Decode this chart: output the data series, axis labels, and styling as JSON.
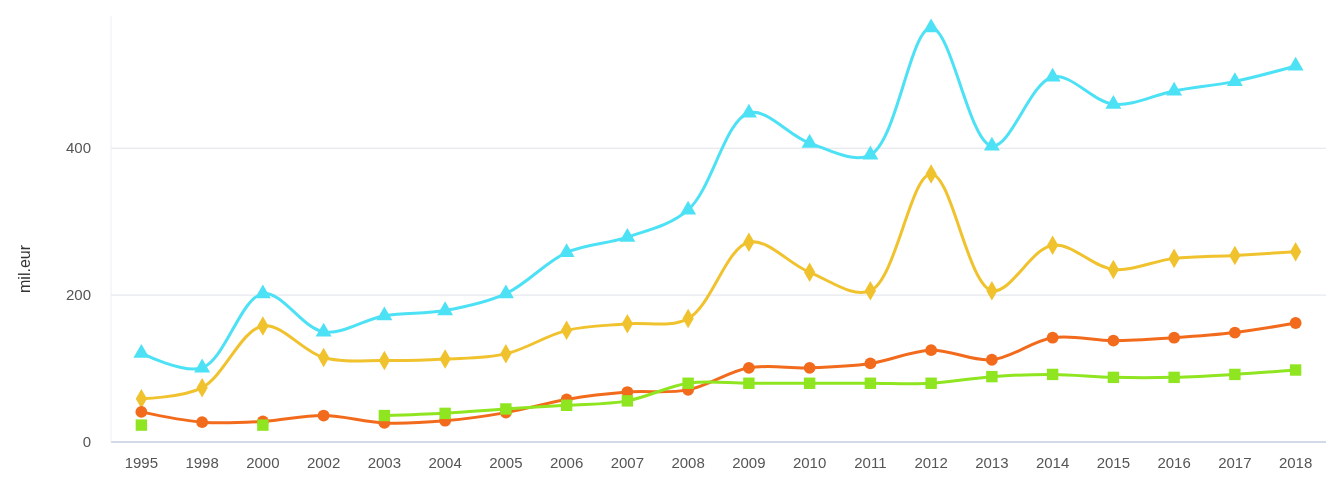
{
  "chart_data": {
    "type": "line",
    "ylabel": "mil.eur",
    "categories": [
      "1995",
      "1998",
      "2000",
      "2002",
      "2003",
      "2004",
      "2005",
      "2006",
      "2007",
      "2008",
      "2009",
      "2010",
      "2011",
      "2012",
      "2013",
      "2014",
      "2015",
      "2016",
      "2017",
      "2018"
    ],
    "series": [
      {
        "color": "#4de1f5",
        "marker": "triangle",
        "values": [
          121,
          101,
          202,
          150,
          172,
          179,
          202,
          258,
          279,
          316,
          448,
          407,
          391,
          564,
          403,
          497,
          460,
          478,
          491,
          512
        ]
      },
      {
        "color": "#f0c22e",
        "marker": "diamond",
        "values": [
          59,
          74,
          158,
          115,
          111,
          113,
          120,
          152,
          161,
          168,
          272,
          231,
          206,
          365,
          206,
          268,
          235,
          250,
          254,
          259
        ]
      },
      {
        "color": "#f26b1d",
        "marker": "circle",
        "values": [
          41,
          27,
          28,
          36,
          26,
          29,
          40,
          58,
          68,
          71,
          101,
          101,
          107,
          125,
          112,
          142,
          138,
          142,
          149,
          162
        ]
      },
      {
        "color": "#8ee520",
        "marker": "square",
        "values": [
          23,
          null,
          23,
          null,
          36,
          39,
          45,
          50,
          56,
          80,
          80,
          80,
          80,
          80,
          89,
          92,
          88,
          88,
          92,
          98
        ]
      }
    ],
    "ylim": [
      0,
      580
    ],
    "yticks": [
      0,
      200,
      400
    ],
    "grid": "y"
  }
}
